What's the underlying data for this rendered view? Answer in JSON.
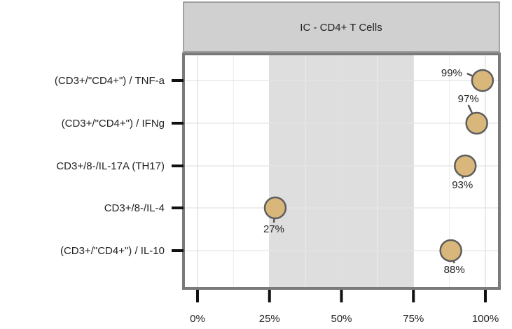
{
  "chart_data": {
    "type": "scatter",
    "facet": "IC - CD4+ T Cells",
    "categories": [
      "(CD3+/\"CD4+\") / TNF-a",
      "(CD3+/\"CD4+\") / IFNg",
      "CD3+/8-/IL-17A (TH17)",
      "CD3+/8-/IL-4",
      "(CD3+/\"CD4+\") / IL-10"
    ],
    "values": [
      99,
      97,
      93,
      27,
      88
    ],
    "value_labels": [
      "99%",
      "97%",
      "93%",
      "27%",
      "88%"
    ],
    "x_ticks": [
      0,
      25,
      50,
      75,
      100
    ],
    "x_tick_labels": [
      "0%",
      "25%",
      "50%",
      "75%",
      "100%"
    ],
    "xlim": [
      0,
      100
    ],
    "shaded_range": [
      25,
      75
    ],
    "grid": true,
    "legend": "none",
    "colors": {
      "point_fill": "#d9b77a",
      "point_stroke": "#5e5e5e",
      "shade": "#dedede",
      "facet_bg": "#d0d0d0",
      "panel_border": "#7a7a7a"
    }
  }
}
